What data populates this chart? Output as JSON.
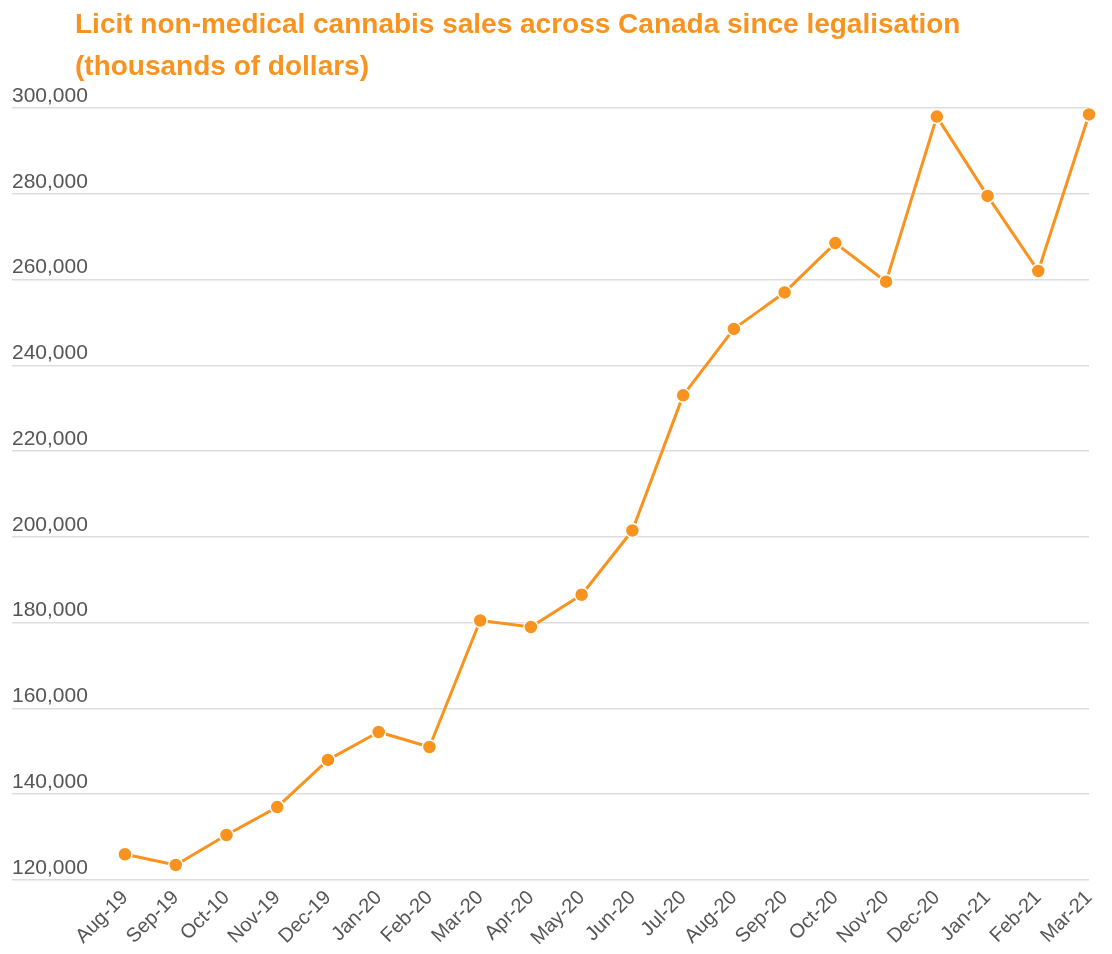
{
  "chart_data": {
    "type": "line",
    "title": "Licit non-medical cannabis sales across Canada since legalisation (thousands of dollars)",
    "categories": [
      "Aug-19",
      "Sep-19",
      "Oct-10",
      "Nov-19",
      "Dec-19",
      "Jan-20",
      "Feb-20",
      "Mar-20",
      "Apr-20",
      "May-20",
      "Jun-20",
      "Jul-20",
      "Aug-20",
      "Sep-20",
      "Oct-20",
      "Nov-20",
      "Dec-20",
      "Jan-21",
      "Feb-21",
      "Mar-21"
    ],
    "series": [
      {
        "color": "#f7931e",
        "values": [
          126000,
          123500,
          130500,
          137000,
          148000,
          154500,
          151000,
          180500,
          179000,
          186500,
          201500,
          233000,
          248500,
          257000,
          268500,
          259500,
          298000,
          279500,
          262000,
          298500
        ]
      }
    ],
    "ylim": [
      120000,
      300000
    ],
    "yticks": [
      {
        "value": 120000,
        "label": "120,000"
      },
      {
        "value": 140000,
        "label": "140,000"
      },
      {
        "value": 160000,
        "label": "160,000"
      },
      {
        "value": 180000,
        "label": "180,000"
      },
      {
        "value": 200000,
        "label": "200,000"
      },
      {
        "value": 220000,
        "label": "220,000"
      },
      {
        "value": 240000,
        "label": "240,000"
      },
      {
        "value": 260000,
        "label": "260,000"
      },
      {
        "value": 280000,
        "label": "280,000"
      },
      {
        "value": 300000,
        "label": "300,000"
      }
    ],
    "grid": "y",
    "marker": "circle",
    "line_style": "solid"
  }
}
